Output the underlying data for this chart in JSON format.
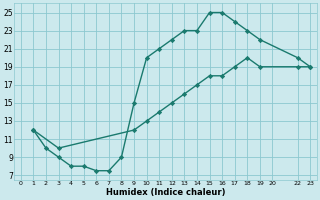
{
  "xlabel": "Humidex (Indice chaleur)",
  "bg_color": "#cce9ed",
  "grid_color": "#8cc8d0",
  "line_color": "#1a7a6e",
  "marker": "D",
  "markersize": 2.2,
  "linewidth": 1.0,
  "xlim": [
    -0.5,
    23.5
  ],
  "ylim": [
    6.5,
    26
  ],
  "xticks": [
    0,
    1,
    2,
    3,
    4,
    5,
    6,
    7,
    8,
    9,
    10,
    11,
    12,
    13,
    14,
    15,
    16,
    17,
    18,
    19,
    20,
    22,
    23
  ],
  "yticks": [
    7,
    9,
    11,
    13,
    15,
    17,
    19,
    21,
    23,
    25
  ],
  "line1_x": [
    1,
    2,
    3,
    4,
    5,
    6,
    7,
    8,
    9,
    10,
    11,
    12,
    13,
    14,
    15,
    16,
    17,
    18,
    19,
    22,
    23
  ],
  "line1_y": [
    12,
    10,
    9,
    8,
    8,
    7.5,
    7.5,
    9,
    15,
    20,
    21,
    22,
    23,
    23,
    25,
    25,
    24,
    23,
    22,
    20,
    19
  ],
  "line2_x": [
    1,
    3,
    9,
    10,
    11,
    12,
    13,
    14,
    15,
    16,
    17,
    18,
    19,
    22,
    23
  ],
  "line2_y": [
    12,
    10,
    12,
    13,
    14,
    15,
    16,
    17,
    18,
    18,
    19,
    20,
    19,
    19,
    19
  ]
}
